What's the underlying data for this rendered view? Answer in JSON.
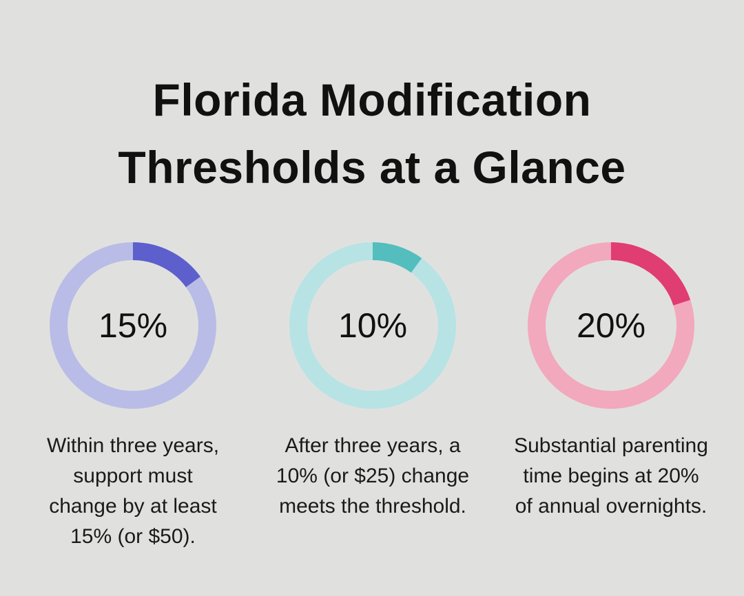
{
  "title": {
    "line1": "Florida Modification",
    "line2": "Thresholds at a Glance"
  },
  "chart_data": {
    "type": "pie",
    "variant": "donut",
    "charts": [
      {
        "value": 15,
        "label": "15%",
        "color": "#5c5fcc",
        "track_color": "#b9bce6",
        "caption": [
          "Within three years,",
          "support must",
          "change by at least",
          "15% (or $50)."
        ]
      },
      {
        "value": 10,
        "label": "10%",
        "color": "#54bdbd",
        "track_color": "#b7e3e4",
        "caption": [
          "After three years, a",
          "10% (or $25) change",
          "meets the threshold."
        ]
      },
      {
        "value": 20,
        "label": "20%",
        "color": "#e03d72",
        "track_color": "#f2a8bd",
        "caption": [
          "Substantial parenting",
          "time begins at 20%",
          "of annual overnights."
        ]
      }
    ]
  }
}
